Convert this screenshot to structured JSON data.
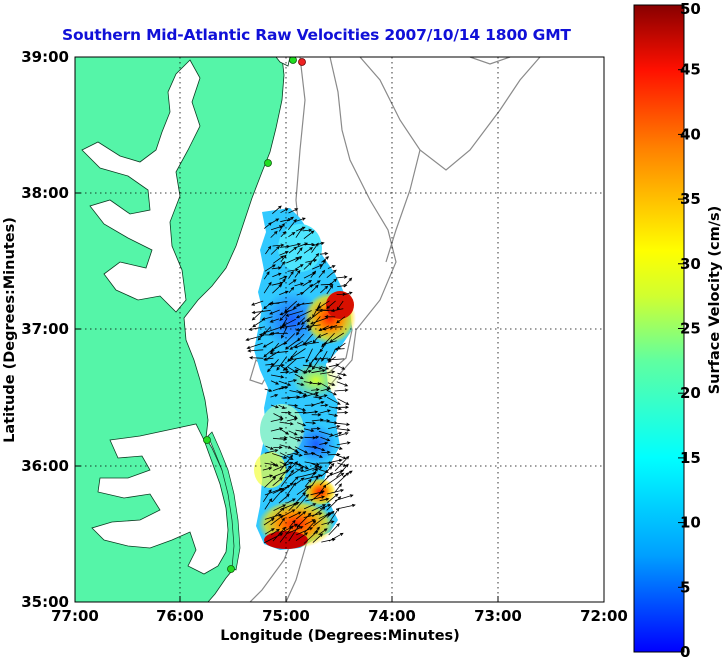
{
  "title": "Southern Mid-Atlantic Raw Velocities 2007/10/14 1800 GMT",
  "xlabel": "Longitude (Degrees:Minutes)",
  "ylabel": "Latitude (Degrees:Minutes)",
  "x_ticks": [
    "77:00",
    "76:00",
    "75:00",
    "74:00",
    "73:00",
    "72:00"
  ],
  "y_ticks": [
    "39:00",
    "38:00",
    "37:00",
    "36:00",
    "35:00"
  ],
  "colorbar": {
    "label": "Surface Velocity (cm/s)",
    "ticks": [
      "0",
      "5",
      "10",
      "15",
      "20",
      "25",
      "30",
      "35",
      "40",
      "45",
      "50"
    ],
    "colormap": "jet"
  },
  "colors": {
    "land": "#55f5a8",
    "title": "#1010d8",
    "contour": "#888888",
    "station_green": "#22dd22",
    "station_red": "#ee2222"
  }
}
